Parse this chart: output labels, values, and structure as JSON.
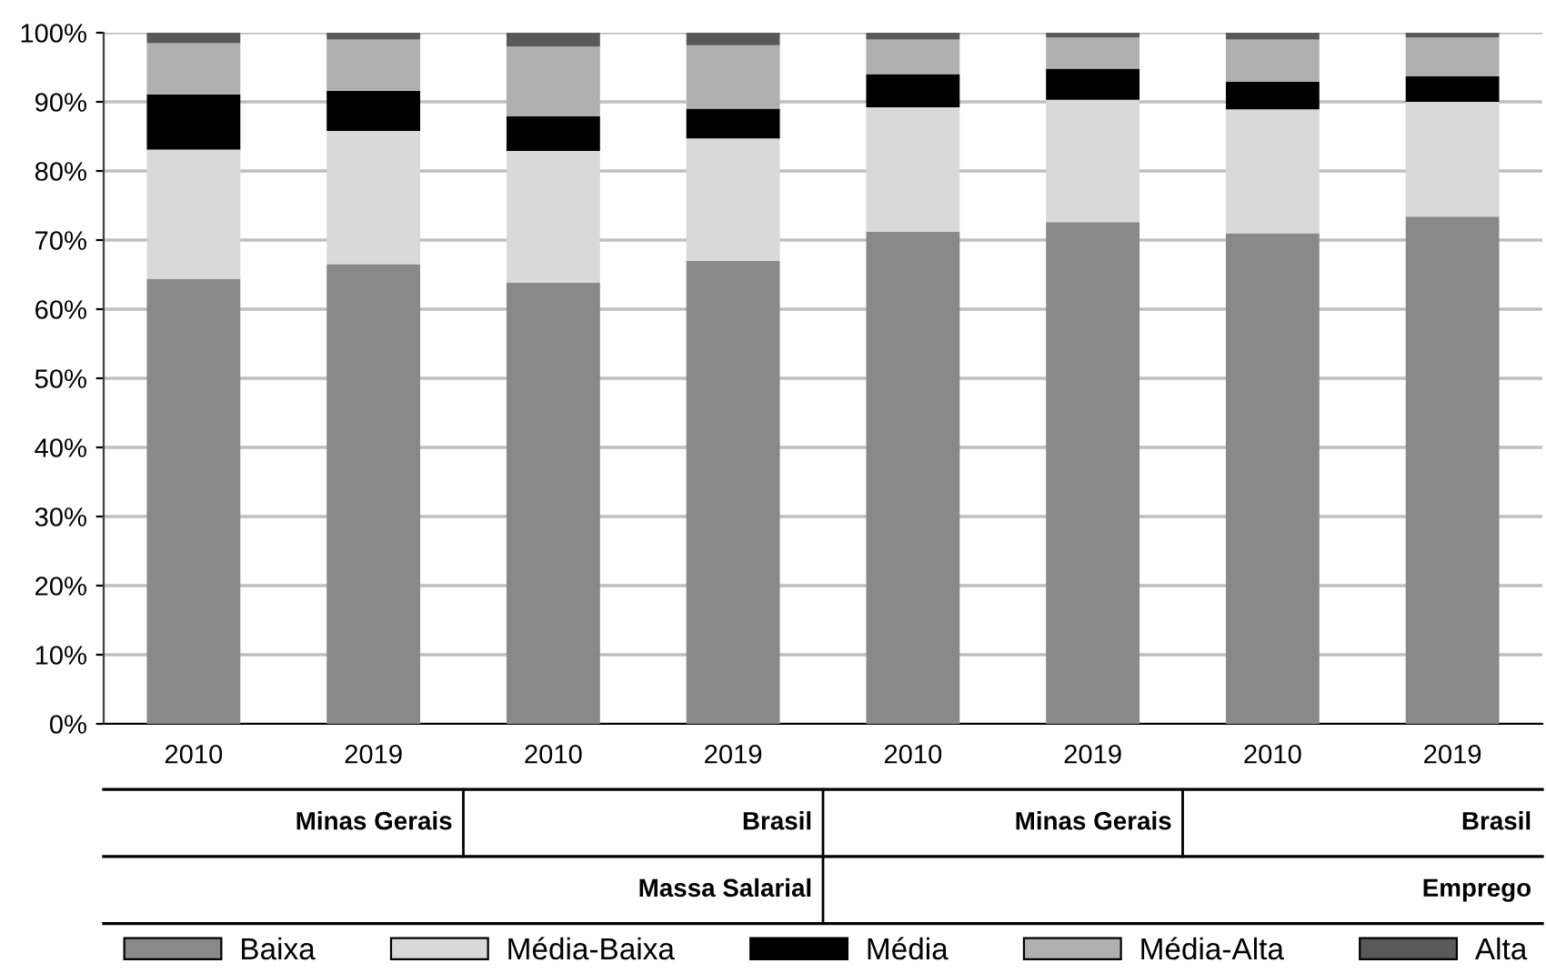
{
  "chart_data": {
    "type": "bar",
    "stacked": true,
    "categories": [
      "2010",
      "2019",
      "2010",
      "2019",
      "2010",
      "2019",
      "2010",
      "2019"
    ],
    "series": [
      {
        "name": "Baixa",
        "color": "#898989",
        "values": [
          64.4,
          66.5,
          63.8,
          67.0,
          71.2,
          72.6,
          71.0,
          73.4
        ]
      },
      {
        "name": "Média-Baixa",
        "color": "#d9d9d9",
        "values": [
          18.7,
          19.3,
          19.1,
          17.7,
          18.0,
          17.7,
          17.9,
          16.6
        ]
      },
      {
        "name": "Média",
        "color": "#000000",
        "values": [
          8.0,
          5.8,
          5.0,
          4.3,
          4.8,
          4.5,
          4.0,
          3.7
        ]
      },
      {
        "name": "Média-Alta",
        "color": "#b0b0b0",
        "values": [
          7.4,
          7.4,
          10.1,
          9.2,
          5.0,
          4.5,
          6.1,
          5.6
        ]
      },
      {
        "name": "Alta",
        "color": "#595959",
        "values": [
          1.5,
          1.0,
          2.0,
          1.8,
          1.0,
          0.7,
          1.0,
          0.7
        ]
      }
    ],
    "ylim": [
      0,
      100
    ],
    "yticks": [
      {
        "value": 0,
        "label": "0%"
      },
      {
        "value": 10,
        "label": "10%"
      },
      {
        "value": 20,
        "label": "20%"
      },
      {
        "value": 30,
        "label": "30%"
      },
      {
        "value": 40,
        "label": "40%"
      },
      {
        "value": 50,
        "label": "50%"
      },
      {
        "value": 60,
        "label": "60%"
      },
      {
        "value": 70,
        "label": "70%"
      },
      {
        "value": 80,
        "label": "80%"
      },
      {
        "value": 90,
        "label": "90%"
      },
      {
        "value": 100,
        "label": "100%"
      }
    ],
    "grid": "y",
    "legend": "bottom",
    "annotations": [
      "Minas Gerais",
      "Brasil",
      "Minas Gerais",
      "Brasil",
      "Massa Salarial",
      "Emprego"
    ]
  }
}
